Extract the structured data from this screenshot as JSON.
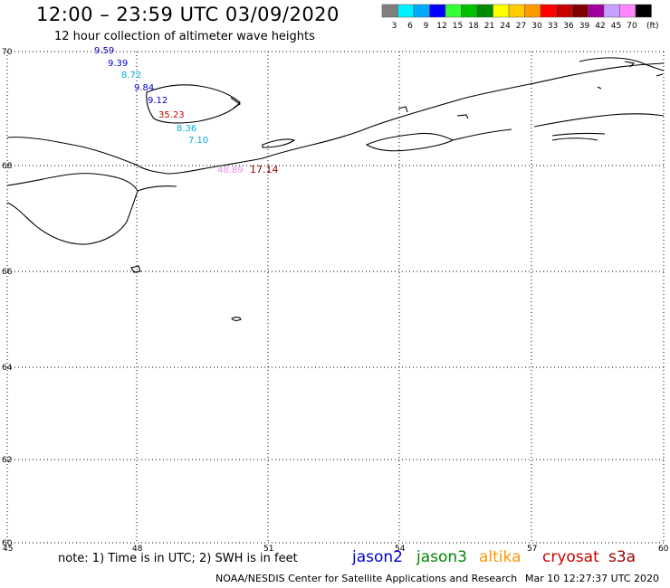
{
  "header": {
    "title": "12:00 – 23:59 UTC 03/09/2020",
    "subtitle": "12 hour collection of altimeter wave heights"
  },
  "colorbar": {
    "unit_label": "(ft)",
    "bins": [
      {
        "label": "3",
        "color": "#7f7f7f"
      },
      {
        "label": "6",
        "color": "#00f0ff"
      },
      {
        "label": "9",
        "color": "#00aaff"
      },
      {
        "label": "12",
        "color": "#0000ff"
      },
      {
        "label": "15",
        "color": "#33ff33"
      },
      {
        "label": "18",
        "color": "#00c000"
      },
      {
        "label": "21",
        "color": "#008a00"
      },
      {
        "label": "24",
        "color": "#ffff00"
      },
      {
        "label": "27",
        "color": "#ffcc00"
      },
      {
        "label": "30",
        "color": "#ff9900"
      },
      {
        "label": "33",
        "color": "#ff0000"
      },
      {
        "label": "36",
        "color": "#c80000"
      },
      {
        "label": "39",
        "color": "#800000"
      },
      {
        "label": "42",
        "color": "#a000a0"
      },
      {
        "label": "45",
        "color": "#c8a0ff"
      },
      {
        "label": "70",
        "color": "#ff88ff"
      },
      {
        "label": "",
        "color": "#000000"
      }
    ]
  },
  "axes": {
    "lon_labels": [
      "45",
      "48",
      "51",
      "54",
      "57",
      "60"
    ],
    "lat_labels": [
      "70",
      "68",
      "66",
      "64",
      "62",
      "60"
    ]
  },
  "observations": [
    {
      "text": "9.59",
      "color": "#0000cc"
    },
    {
      "text": "9.39",
      "color": "#0000cc"
    },
    {
      "text": "8.72",
      "color": "#00aadd"
    },
    {
      "text": "9.84",
      "color": "#0000cc"
    },
    {
      "text": "9.12",
      "color": "#0000cc"
    },
    {
      "text": "35.23",
      "color": "#cc0000"
    },
    {
      "text": "8.36",
      "color": "#00aadd"
    },
    {
      "text": "7.10",
      "color": "#00aadd"
    },
    {
      "text": "48.89",
      "color": "#ee88ee"
    },
    {
      "text": "17.14",
      "color": "#990000"
    }
  ],
  "footer": {
    "note": "note:  1) Time is in UTC;  2) SWH is in feet",
    "legend": [
      {
        "label": "jason2",
        "color": "#0000cc"
      },
      {
        "label": "jason3",
        "color": "#008800"
      },
      {
        "label": "altika",
        "color": "#ff9900"
      },
      {
        "label": "cryosat",
        "color": "#cc0000"
      },
      {
        "label": "s3a",
        "color": "#990000"
      }
    ],
    "credit": "NOAA/NESDIS Center for Satellite Applications and Research",
    "timestamp": "Mar 10 12:27:37 UTC 2020"
  }
}
